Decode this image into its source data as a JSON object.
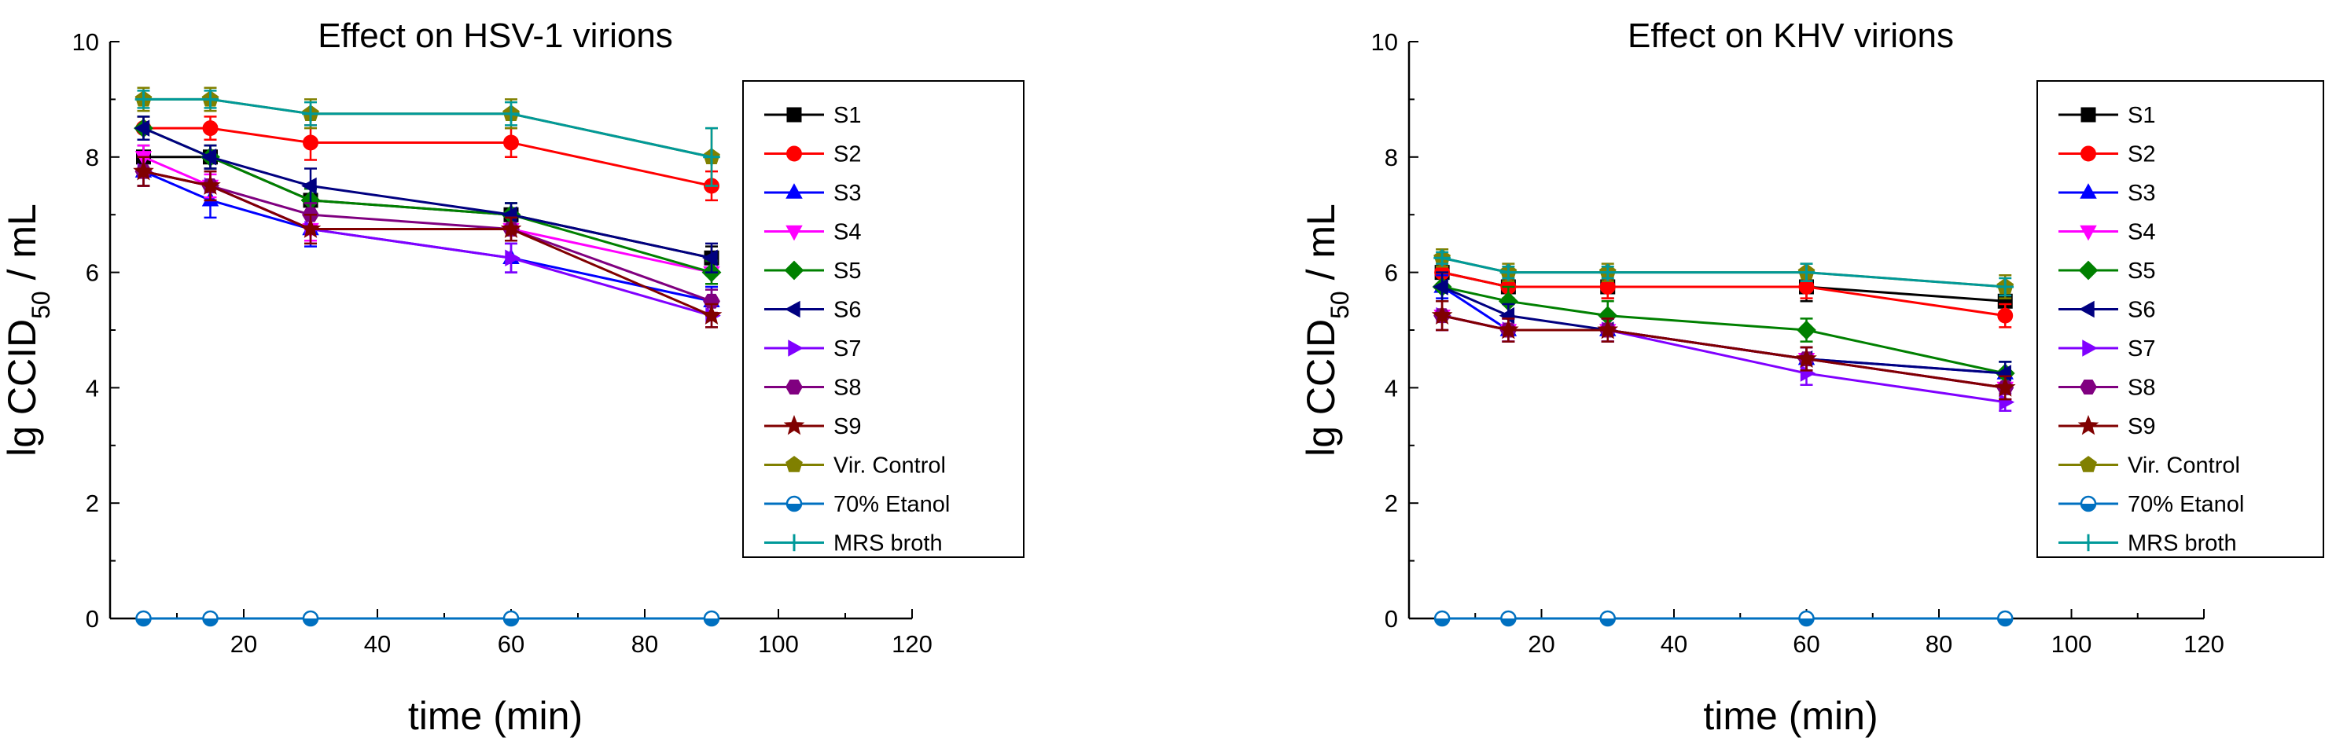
{
  "chart_data": [
    {
      "type": "line",
      "title": "Effect on HSV-1 virions",
      "xlabel": "time (min)",
      "ylabel_main": "lg CCID",
      "ylabel_sub": "50",
      "ylabel_tail": " / mL",
      "xlim": [
        0,
        120
      ],
      "ylim": [
        0,
        10
      ],
      "xticks": [
        20,
        40,
        60,
        80,
        100,
        120
      ],
      "yticks": [
        0,
        2,
        4,
        6,
        8,
        10
      ],
      "x": [
        5,
        15,
        30,
        60,
        90
      ],
      "legend_position": "top-right",
      "grid": false,
      "series": [
        {
          "name": "S1",
          "color": "#000000",
          "marker": "square",
          "values": [
            8.0,
            8.0,
            7.25,
            7.0,
            6.25
          ],
          "errors": [
            0.2,
            0.2,
            0.2,
            0.2,
            0.2
          ]
        },
        {
          "name": "S2",
          "color": "#ff0000",
          "marker": "circle",
          "values": [
            8.5,
            8.5,
            8.25,
            8.25,
            7.5
          ],
          "errors": [
            0.2,
            0.2,
            0.3,
            0.25,
            0.25
          ]
        },
        {
          "name": "S3",
          "color": "#0000ff",
          "marker": "triangle-up",
          "values": [
            7.75,
            7.25,
            6.75,
            6.25,
            5.5
          ],
          "errors": [
            0.25,
            0.3,
            0.3,
            0.25,
            0.25
          ]
        },
        {
          "name": "S4",
          "color": "#ff00ff",
          "marker": "triangle-down",
          "values": [
            8.0,
            7.5,
            6.75,
            6.75,
            6.0
          ],
          "errors": [
            0.2,
            0.2,
            0.2,
            0.2,
            0.2
          ]
        },
        {
          "name": "S5",
          "color": "#008000",
          "marker": "diamond",
          "values": [
            8.5,
            8.0,
            7.25,
            7.0,
            6.0
          ],
          "errors": [
            0.2,
            0.2,
            0.2,
            0.2,
            0.2
          ]
        },
        {
          "name": "S6",
          "color": "#000080",
          "marker": "triangle-left",
          "values": [
            8.5,
            8.0,
            7.5,
            7.0,
            6.25
          ],
          "errors": [
            0.2,
            0.2,
            0.3,
            0.2,
            0.25
          ]
        },
        {
          "name": "S7",
          "color": "#8000ff",
          "marker": "triangle-right",
          "values": [
            7.75,
            7.5,
            6.75,
            6.25,
            5.25
          ],
          "errors": [
            0.25,
            0.25,
            0.25,
            0.25,
            0.2
          ]
        },
        {
          "name": "S8",
          "color": "#800080",
          "marker": "hexagon",
          "values": [
            7.75,
            7.5,
            7.0,
            6.75,
            5.5
          ],
          "errors": [
            0.25,
            0.25,
            0.2,
            0.2,
            0.2
          ]
        },
        {
          "name": "S9",
          "color": "#800000",
          "marker": "star",
          "values": [
            7.75,
            7.5,
            6.75,
            6.75,
            5.25
          ],
          "errors": [
            0.25,
            0.25,
            0.25,
            0.2,
            0.2
          ]
        },
        {
          "name": "Vir. Control",
          "color": "#808000",
          "marker": "pentagon",
          "values": [
            9.0,
            9.0,
            8.75,
            8.75,
            8.0
          ],
          "errors": [
            0.2,
            0.2,
            0.25,
            0.25,
            0.5
          ]
        },
        {
          "name": "70% Etanol",
          "color": "#0070c0",
          "marker": "half-circle",
          "values": [
            0,
            0,
            0,
            0,
            0
          ],
          "errors": [
            0,
            0,
            0,
            0,
            0
          ]
        },
        {
          "name": "MRS broth",
          "color": "#009999",
          "marker": "plus",
          "values": [
            9.0,
            9.0,
            8.75,
            8.75,
            8.0
          ],
          "errors": [
            0.15,
            0.15,
            0.2,
            0.2,
            0.5
          ]
        }
      ]
    },
    {
      "type": "line",
      "title": "Effect on KHV virions",
      "xlabel": "time (min)",
      "ylabel_main": "lg CCID",
      "ylabel_sub": "50",
      "ylabel_tail": " / mL",
      "xlim": [
        0,
        120
      ],
      "ylim": [
        0,
        10
      ],
      "xticks": [
        20,
        40,
        60,
        80,
        100,
        120
      ],
      "yticks": [
        0,
        2,
        4,
        6,
        8,
        10
      ],
      "x": [
        5,
        15,
        30,
        60,
        90
      ],
      "legend_position": "top-right",
      "grid": false,
      "series": [
        {
          "name": "S1",
          "color": "#000000",
          "marker": "square",
          "values": [
            6.0,
            5.75,
            5.75,
            5.75,
            5.5
          ],
          "errors": [
            0.2,
            0.2,
            0.2,
            0.25,
            0.2
          ]
        },
        {
          "name": "S2",
          "color": "#ff0000",
          "marker": "circle",
          "values": [
            6.0,
            5.75,
            5.75,
            5.75,
            5.25
          ],
          "errors": [
            0.2,
            0.2,
            0.2,
            0.2,
            0.2
          ]
        },
        {
          "name": "S3",
          "color": "#0000ff",
          "marker": "triangle-up",
          "values": [
            5.75,
            5.0,
            5.0,
            4.5,
            4.25
          ],
          "errors": [
            0.2,
            0.2,
            0.2,
            0.2,
            0.2
          ]
        },
        {
          "name": "S4",
          "color": "#ff00ff",
          "marker": "triangle-down",
          "values": [
            5.25,
            5.0,
            5.0,
            4.5,
            4.0
          ],
          "errors": [
            0.25,
            0.2,
            0.2,
            0.2,
            0.2
          ]
        },
        {
          "name": "S5",
          "color": "#008000",
          "marker": "diamond",
          "values": [
            5.75,
            5.5,
            5.25,
            5.0,
            4.25
          ],
          "errors": [
            0.25,
            0.25,
            0.25,
            0.2,
            0.2
          ]
        },
        {
          "name": "S6",
          "color": "#000080",
          "marker": "triangle-left",
          "values": [
            5.75,
            5.25,
            5.0,
            4.5,
            4.25
          ],
          "errors": [
            0.25,
            0.2,
            0.2,
            0.2,
            0.2
          ]
        },
        {
          "name": "S7",
          "color": "#8000ff",
          "marker": "triangle-right",
          "values": [
            5.25,
            5.0,
            5.0,
            4.25,
            3.75
          ],
          "errors": [
            0.25,
            0.2,
            0.2,
            0.2,
            0.15
          ]
        },
        {
          "name": "S8",
          "color": "#800080",
          "marker": "hexagon",
          "values": [
            5.25,
            5.0,
            5.0,
            4.5,
            4.0
          ],
          "errors": [
            0.25,
            0.2,
            0.2,
            0.2,
            0.2
          ]
        },
        {
          "name": "S9",
          "color": "#800000",
          "marker": "star",
          "values": [
            5.25,
            5.0,
            5.0,
            4.5,
            4.0
          ],
          "errors": [
            0.25,
            0.2,
            0.2,
            0.2,
            0.2
          ]
        },
        {
          "name": "Vir. Control",
          "color": "#808000",
          "marker": "pentagon",
          "values": [
            6.25,
            6.0,
            6.0,
            6.0,
            5.75
          ],
          "errors": [
            0.15,
            0.15,
            0.15,
            0.15,
            0.2
          ]
        },
        {
          "name": "70% Etanol",
          "color": "#0070c0",
          "marker": "half-circle",
          "values": [
            0,
            0,
            0,
            0,
            0
          ],
          "errors": [
            0,
            0,
            0,
            0,
            0
          ]
        },
        {
          "name": "MRS broth",
          "color": "#009999",
          "marker": "plus",
          "values": [
            6.25,
            6.0,
            6.0,
            6.0,
            5.75
          ],
          "errors": [
            0.1,
            0.1,
            0.1,
            0.15,
            0.15
          ]
        }
      ]
    }
  ]
}
